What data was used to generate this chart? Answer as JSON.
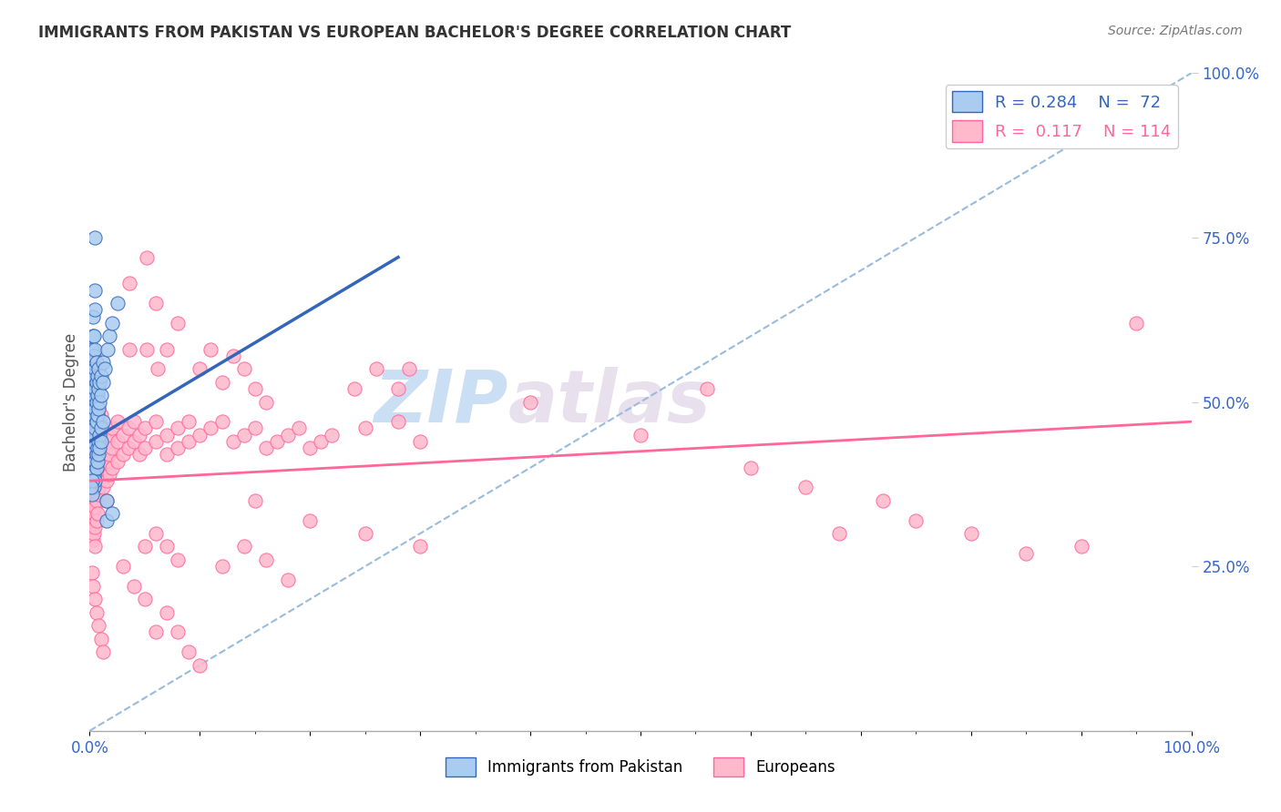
{
  "title": "IMMIGRANTS FROM PAKISTAN VS EUROPEAN BACHELOR'S DEGREE CORRELATION CHART",
  "source_text": "Source: ZipAtlas.com",
  "ylabel": "Bachelor's Degree",
  "xlim": [
    0,
    1.0
  ],
  "ylim": [
    0,
    1.0
  ],
  "color_pakistan": "#aaccf0",
  "color_european": "#ffb8cc",
  "color_trendline_pakistan": "#3366bb",
  "color_trendline_european": "#ff6699",
  "color_trendline_dashed": "#99bbdd",
  "watermark_zip": "ZIP",
  "watermark_atlas": "atlas",
  "pakistan_trendline": [
    [
      0.0,
      0.44
    ],
    [
      0.28,
      0.72
    ]
  ],
  "european_trendline": [
    [
      0.0,
      0.38
    ],
    [
      1.0,
      0.47
    ]
  ],
  "pakistan_points": [
    [
      0.001,
      0.44
    ],
    [
      0.001,
      0.46
    ],
    [
      0.001,
      0.48
    ],
    [
      0.001,
      0.5
    ],
    [
      0.002,
      0.43
    ],
    [
      0.002,
      0.46
    ],
    [
      0.002,
      0.48
    ],
    [
      0.002,
      0.52
    ],
    [
      0.002,
      0.54
    ],
    [
      0.002,
      0.56
    ],
    [
      0.002,
      0.58
    ],
    [
      0.003,
      0.44
    ],
    [
      0.003,
      0.47
    ],
    [
      0.003,
      0.5
    ],
    [
      0.003,
      0.53
    ],
    [
      0.003,
      0.56
    ],
    [
      0.003,
      0.6
    ],
    [
      0.003,
      0.63
    ],
    [
      0.004,
      0.45
    ],
    [
      0.004,
      0.48
    ],
    [
      0.004,
      0.51
    ],
    [
      0.004,
      0.54
    ],
    [
      0.004,
      0.57
    ],
    [
      0.004,
      0.6
    ],
    [
      0.005,
      0.46
    ],
    [
      0.005,
      0.49
    ],
    [
      0.005,
      0.52
    ],
    [
      0.005,
      0.55
    ],
    [
      0.005,
      0.58
    ],
    [
      0.005,
      0.64
    ],
    [
      0.005,
      0.67
    ],
    [
      0.006,
      0.47
    ],
    [
      0.006,
      0.5
    ],
    [
      0.006,
      0.53
    ],
    [
      0.006,
      0.56
    ],
    [
      0.007,
      0.48
    ],
    [
      0.007,
      0.51
    ],
    [
      0.007,
      0.54
    ],
    [
      0.008,
      0.49
    ],
    [
      0.008,
      0.52
    ],
    [
      0.008,
      0.55
    ],
    [
      0.009,
      0.5
    ],
    [
      0.009,
      0.53
    ],
    [
      0.01,
      0.51
    ],
    [
      0.01,
      0.54
    ],
    [
      0.012,
      0.53
    ],
    [
      0.012,
      0.56
    ],
    [
      0.014,
      0.55
    ],
    [
      0.016,
      0.58
    ],
    [
      0.018,
      0.6
    ],
    [
      0.02,
      0.62
    ],
    [
      0.025,
      0.65
    ],
    [
      0.005,
      0.75
    ],
    [
      0.003,
      0.4
    ],
    [
      0.003,
      0.38
    ],
    [
      0.004,
      0.39
    ],
    [
      0.004,
      0.37
    ],
    [
      0.005,
      0.41
    ],
    [
      0.005,
      0.38
    ],
    [
      0.006,
      0.42
    ],
    [
      0.006,
      0.4
    ],
    [
      0.007,
      0.43
    ],
    [
      0.007,
      0.41
    ],
    [
      0.008,
      0.44
    ],
    [
      0.008,
      0.42
    ],
    [
      0.009,
      0.45
    ],
    [
      0.009,
      0.43
    ],
    [
      0.01,
      0.46
    ],
    [
      0.01,
      0.44
    ],
    [
      0.012,
      0.47
    ],
    [
      0.002,
      0.38
    ],
    [
      0.002,
      0.36
    ],
    [
      0.001,
      0.37
    ],
    [
      0.015,
      0.35
    ],
    [
      0.015,
      0.32
    ],
    [
      0.02,
      0.33
    ]
  ],
  "european_points": [
    [
      0.001,
      0.36
    ],
    [
      0.001,
      0.38
    ],
    [
      0.001,
      0.4
    ],
    [
      0.001,
      0.42
    ],
    [
      0.001,
      0.44
    ],
    [
      0.001,
      0.46
    ],
    [
      0.001,
      0.34
    ],
    [
      0.002,
      0.37
    ],
    [
      0.002,
      0.4
    ],
    [
      0.002,
      0.43
    ],
    [
      0.002,
      0.46
    ],
    [
      0.002,
      0.49
    ],
    [
      0.002,
      0.34
    ],
    [
      0.002,
      0.31
    ],
    [
      0.003,
      0.38
    ],
    [
      0.003,
      0.41
    ],
    [
      0.003,
      0.44
    ],
    [
      0.003,
      0.47
    ],
    [
      0.003,
      0.5
    ],
    [
      0.003,
      0.35
    ],
    [
      0.003,
      0.32
    ],
    [
      0.003,
      0.29
    ],
    [
      0.004,
      0.39
    ],
    [
      0.004,
      0.42
    ],
    [
      0.004,
      0.45
    ],
    [
      0.004,
      0.48
    ],
    [
      0.004,
      0.36
    ],
    [
      0.004,
      0.33
    ],
    [
      0.004,
      0.3
    ],
    [
      0.005,
      0.4
    ],
    [
      0.005,
      0.43
    ],
    [
      0.005,
      0.46
    ],
    [
      0.005,
      0.49
    ],
    [
      0.005,
      0.37
    ],
    [
      0.005,
      0.34
    ],
    [
      0.005,
      0.31
    ],
    [
      0.005,
      0.28
    ],
    [
      0.006,
      0.41
    ],
    [
      0.006,
      0.44
    ],
    [
      0.006,
      0.47
    ],
    [
      0.006,
      0.38
    ],
    [
      0.006,
      0.35
    ],
    [
      0.006,
      0.32
    ],
    [
      0.007,
      0.42
    ],
    [
      0.007,
      0.45
    ],
    [
      0.007,
      0.48
    ],
    [
      0.007,
      0.39
    ],
    [
      0.007,
      0.36
    ],
    [
      0.007,
      0.33
    ],
    [
      0.008,
      0.43
    ],
    [
      0.008,
      0.46
    ],
    [
      0.008,
      0.49
    ],
    [
      0.008,
      0.4
    ],
    [
      0.008,
      0.37
    ],
    [
      0.009,
      0.44
    ],
    [
      0.009,
      0.47
    ],
    [
      0.009,
      0.41
    ],
    [
      0.009,
      0.38
    ],
    [
      0.01,
      0.45
    ],
    [
      0.01,
      0.48
    ],
    [
      0.01,
      0.42
    ],
    [
      0.01,
      0.39
    ],
    [
      0.012,
      0.43
    ],
    [
      0.012,
      0.46
    ],
    [
      0.012,
      0.4
    ],
    [
      0.012,
      0.37
    ],
    [
      0.015,
      0.41
    ],
    [
      0.015,
      0.44
    ],
    [
      0.015,
      0.38
    ],
    [
      0.015,
      0.35
    ],
    [
      0.018,
      0.42
    ],
    [
      0.018,
      0.45
    ],
    [
      0.018,
      0.39
    ],
    [
      0.02,
      0.43
    ],
    [
      0.02,
      0.46
    ],
    [
      0.02,
      0.4
    ],
    [
      0.025,
      0.44
    ],
    [
      0.025,
      0.47
    ],
    [
      0.025,
      0.41
    ],
    [
      0.03,
      0.45
    ],
    [
      0.03,
      0.42
    ],
    [
      0.035,
      0.46
    ],
    [
      0.035,
      0.43
    ],
    [
      0.04,
      0.44
    ],
    [
      0.04,
      0.47
    ],
    [
      0.045,
      0.45
    ],
    [
      0.045,
      0.42
    ],
    [
      0.05,
      0.46
    ],
    [
      0.05,
      0.43
    ],
    [
      0.06,
      0.44
    ],
    [
      0.06,
      0.47
    ],
    [
      0.07,
      0.45
    ],
    [
      0.07,
      0.42
    ],
    [
      0.08,
      0.46
    ],
    [
      0.08,
      0.43
    ],
    [
      0.09,
      0.44
    ],
    [
      0.09,
      0.47
    ],
    [
      0.1,
      0.45
    ],
    [
      0.11,
      0.46
    ],
    [
      0.12,
      0.47
    ],
    [
      0.13,
      0.44
    ],
    [
      0.14,
      0.45
    ],
    [
      0.15,
      0.46
    ],
    [
      0.16,
      0.43
    ],
    [
      0.17,
      0.44
    ],
    [
      0.18,
      0.45
    ],
    [
      0.19,
      0.46
    ],
    [
      0.2,
      0.43
    ],
    [
      0.21,
      0.44
    ],
    [
      0.22,
      0.45
    ],
    [
      0.25,
      0.46
    ],
    [
      0.28,
      0.47
    ],
    [
      0.3,
      0.44
    ],
    [
      0.036,
      0.58
    ],
    [
      0.052,
      0.58
    ],
    [
      0.036,
      0.68
    ],
    [
      0.052,
      0.72
    ],
    [
      0.062,
      0.55
    ],
    [
      0.07,
      0.58
    ],
    [
      0.08,
      0.62
    ],
    [
      0.06,
      0.65
    ],
    [
      0.1,
      0.55
    ],
    [
      0.11,
      0.58
    ],
    [
      0.12,
      0.53
    ],
    [
      0.13,
      0.57
    ],
    [
      0.14,
      0.55
    ],
    [
      0.15,
      0.52
    ],
    [
      0.16,
      0.5
    ],
    [
      0.24,
      0.52
    ],
    [
      0.26,
      0.55
    ],
    [
      0.28,
      0.52
    ],
    [
      0.29,
      0.55
    ],
    [
      0.56,
      0.52
    ],
    [
      0.6,
      0.4
    ],
    [
      0.65,
      0.37
    ],
    [
      0.68,
      0.3
    ],
    [
      0.72,
      0.35
    ],
    [
      0.75,
      0.32
    ],
    [
      0.8,
      0.3
    ],
    [
      0.85,
      0.27
    ],
    [
      0.9,
      0.28
    ],
    [
      0.95,
      0.62
    ],
    [
      0.03,
      0.25
    ],
    [
      0.04,
      0.22
    ],
    [
      0.05,
      0.2
    ],
    [
      0.06,
      0.15
    ],
    [
      0.07,
      0.18
    ],
    [
      0.08,
      0.15
    ],
    [
      0.09,
      0.12
    ],
    [
      0.1,
      0.1
    ],
    [
      0.002,
      0.24
    ],
    [
      0.003,
      0.22
    ],
    [
      0.005,
      0.2
    ],
    [
      0.006,
      0.18
    ],
    [
      0.008,
      0.16
    ],
    [
      0.01,
      0.14
    ],
    [
      0.012,
      0.12
    ],
    [
      0.4,
      0.5
    ],
    [
      0.5,
      0.45
    ],
    [
      0.15,
      0.35
    ],
    [
      0.2,
      0.32
    ],
    [
      0.25,
      0.3
    ],
    [
      0.3,
      0.28
    ],
    [
      0.05,
      0.28
    ],
    [
      0.06,
      0.3
    ],
    [
      0.07,
      0.28
    ],
    [
      0.08,
      0.26
    ],
    [
      0.12,
      0.25
    ],
    [
      0.14,
      0.28
    ],
    [
      0.16,
      0.26
    ],
    [
      0.18,
      0.23
    ],
    [
      0.002,
      0.56
    ]
  ]
}
